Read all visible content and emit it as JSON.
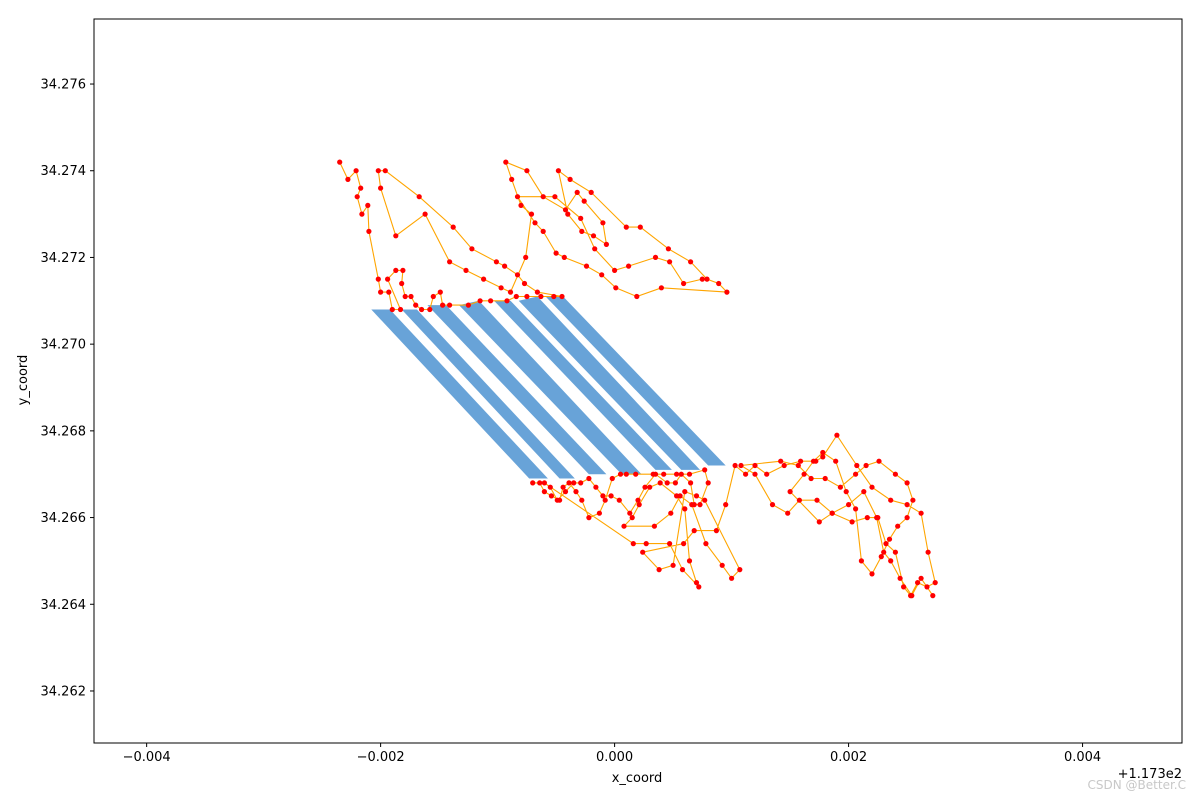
{
  "chart_data": {
    "type": "line",
    "title": "",
    "xlabel": "x_coord",
    "ylabel": "y_coord",
    "x_offset_label": "+1.173e2",
    "x_offset": 117.3,
    "xlim": [
      -0.00445,
      0.00485
    ],
    "ylim": [
      34.2608,
      34.2775
    ],
    "x_tick_values": [
      -0.004,
      -0.002,
      0.0,
      0.002,
      0.004
    ],
    "x_tick_labels": [
      "−0.004",
      "−0.002",
      "0.000",
      "0.002",
      "0.004"
    ],
    "y_tick_values": [
      34.262,
      34.264,
      34.266,
      34.268,
      34.27,
      34.272,
      34.274,
      34.276
    ],
    "y_tick_labels": [
      "34.262",
      "34.264",
      "34.266",
      "34.268",
      "34.270",
      "34.272",
      "34.274",
      "34.276"
    ],
    "grid": false,
    "colors": {
      "polygons": "#5b9bd5",
      "path": "#ffa500",
      "points": "#ff0000",
      "axes": "#000000"
    },
    "polygons": [
      [
        [
          -0.00208,
          34.2708
        ],
        [
          -0.00192,
          34.2708
        ],
        [
          -0.00057,
          34.2669
        ],
        [
          -0.00073,
          34.2669
        ]
      ],
      [
        [
          -0.00182,
          34.2708
        ],
        [
          -0.00169,
          34.2708
        ],
        [
          -0.00034,
          34.2669
        ],
        [
          -0.00047,
          34.2669
        ]
      ],
      [
        [
          -0.0016,
          34.2709
        ],
        [
          -0.00144,
          34.2709
        ],
        [
          -7e-05,
          34.267
        ],
        [
          -0.00022,
          34.267
        ]
      ],
      [
        [
          -0.00133,
          34.2709
        ],
        [
          -0.00116,
          34.271
        ],
        [
          0.00023,
          34.267
        ],
        [
          6e-05,
          34.267
        ]
      ],
      [
        [
          -0.00103,
          34.271
        ],
        [
          -0.00089,
          34.271
        ],
        [
          0.00049,
          34.2671
        ],
        [
          0.00035,
          34.2671
        ]
      ],
      [
        [
          -0.00082,
          34.271
        ],
        [
          -0.00066,
          34.2711
        ],
        [
          0.00073,
          34.2671
        ],
        [
          0.00057,
          34.2671
        ]
      ],
      [
        [
          -0.00059,
          34.2711
        ],
        [
          -0.00044,
          34.2711
        ],
        [
          0.00095,
          34.2672
        ],
        [
          0.0008,
          34.2672
        ]
      ]
    ],
    "series": [
      {
        "points": [
          [
            -0.00235,
            34.2742
          ],
          [
            -0.00228,
            34.2738
          ],
          [
            -0.00221,
            34.274
          ],
          [
            -0.00217,
            34.2736
          ],
          [
            -0.0022,
            34.2734
          ],
          [
            -0.00216,
            34.273
          ],
          [
            -0.00211,
            34.2732
          ],
          [
            -0.0021,
            34.2726
          ],
          [
            -0.00202,
            34.2715
          ],
          [
            -0.002,
            34.2712
          ],
          [
            -0.00193,
            34.2712
          ],
          [
            -0.0019,
            34.2708
          ],
          [
            -0.00183,
            34.2708
          ],
          [
            -0.00194,
            34.2715
          ],
          [
            -0.00187,
            34.2717
          ],
          [
            -0.00181,
            34.2717
          ],
          [
            -0.00182,
            34.2714
          ],
          [
            -0.00179,
            34.2711
          ],
          [
            -0.00174,
            34.2711
          ],
          [
            -0.0017,
            34.2709
          ],
          [
            -0.00165,
            34.2708
          ],
          [
            -0.00158,
            34.2708
          ],
          [
            -0.00155,
            34.2711
          ],
          [
            -0.00149,
            34.2712
          ],
          [
            -0.00147,
            34.2709
          ],
          [
            -0.00141,
            34.2709
          ],
          [
            -0.00125,
            34.2709
          ],
          [
            -0.00115,
            34.271
          ],
          [
            -0.00106,
            34.271
          ],
          [
            -0.00092,
            34.271
          ],
          [
            -0.00084,
            34.2711
          ],
          [
            -0.00075,
            34.2711
          ],
          [
            -0.00063,
            34.2711
          ],
          [
            -0.00052,
            34.2711
          ],
          [
            -0.00045,
            34.2711
          ],
          [
            -0.00066,
            34.2712
          ],
          [
            -0.00077,
            34.2714
          ],
          [
            -0.00083,
            34.2716
          ],
          [
            -0.00094,
            34.2718
          ],
          [
            -0.00101,
            34.2719
          ],
          [
            -0.00122,
            34.2722
          ],
          [
            -0.00138,
            34.2727
          ],
          [
            -0.00167,
            34.2734
          ],
          [
            -0.00196,
            34.274
          ],
          [
            -0.00202,
            34.274
          ],
          [
            -0.002,
            34.2736
          ],
          [
            -0.00187,
            34.2725
          ],
          [
            -0.00162,
            34.273
          ],
          [
            -0.00141,
            34.2719
          ],
          [
            -0.00127,
            34.2717
          ],
          [
            -0.00112,
            34.2715
          ],
          [
            -0.00097,
            34.2713
          ],
          [
            -0.00089,
            34.2712
          ],
          [
            -0.00076,
            34.272
          ],
          [
            -0.00071,
            34.273
          ],
          [
            -0.0008,
            34.2732
          ],
          [
            -0.00088,
            34.2738
          ],
          [
            -0.00093,
            34.2742
          ],
          [
            -0.00075,
            34.274
          ],
          [
            -0.00061,
            34.2734
          ],
          [
            -0.00042,
            34.2731
          ],
          [
            -0.00032,
            34.2735
          ],
          [
            -0.00026,
            34.2733
          ],
          [
            -0.0001,
            34.2728
          ],
          [
            -7e-05,
            34.2723
          ],
          [
            -0.00018,
            34.2725
          ],
          [
            -0.00028,
            34.2726
          ],
          [
            -0.0004,
            34.273
          ],
          [
            -0.00048,
            34.274
          ],
          [
            -0.00038,
            34.2738
          ],
          [
            -0.0002,
            34.2735
          ],
          [
            0.0001,
            34.2727
          ],
          [
            0.00022,
            34.2727
          ],
          [
            0.00046,
            34.2722
          ],
          [
            0.00065,
            34.2719
          ],
          [
            0.00079,
            34.2715
          ],
          [
            0.00089,
            34.2714
          ],
          [
            0.00096,
            34.2712
          ],
          [
            0.0004,
            34.2713
          ],
          [
            0.00019,
            34.2711
          ],
          [
            1e-05,
            34.2713
          ],
          [
            -0.00011,
            34.2716
          ],
          [
            -0.00024,
            34.2718
          ],
          [
            -0.00043,
            34.272
          ],
          [
            -0.0005,
            34.2721
          ],
          [
            -0.00061,
            34.2726
          ],
          [
            -0.00068,
            34.2728
          ],
          [
            -0.00083,
            34.2734
          ],
          [
            -0.00051,
            34.2734
          ],
          [
            -0.00029,
            34.2729
          ],
          [
            -0.00017,
            34.2722
          ],
          [
            0.0,
            34.2717
          ],
          [
            0.00012,
            34.2718
          ],
          [
            0.00035,
            34.272
          ],
          [
            0.00047,
            34.2719
          ],
          [
            0.00059,
            34.2714
          ],
          [
            0.00075,
            34.2715
          ]
        ]
      },
      {
        "points": [
          [
            -0.0007,
            34.2668
          ],
          [
            -0.00064,
            34.2668
          ],
          [
            -0.0006,
            34.2666
          ],
          [
            -0.00054,
            34.2665
          ],
          [
            -0.00047,
            34.2664
          ],
          [
            -0.00044,
            34.2667
          ],
          [
            -0.00039,
            34.2668
          ],
          [
            -0.00033,
            34.2666
          ],
          [
            -0.00028,
            34.2664
          ],
          [
            -0.00022,
            34.266
          ],
          [
            -0.00013,
            34.2661
          ],
          [
            -8e-05,
            34.2664
          ],
          [
            -2e-05,
            34.2669
          ],
          [
            5e-05,
            34.267
          ],
          [
            0.0001,
            34.267
          ],
          [
            0.00018,
            34.267
          ],
          [
            0.00033,
            34.267
          ],
          [
            0.00042,
            34.267
          ],
          [
            0.00053,
            34.267
          ],
          [
            0.00064,
            34.267
          ],
          [
            0.00077,
            34.2671
          ],
          [
            0.0008,
            34.2668
          ],
          [
            0.00073,
            34.2663
          ],
          [
            0.00068,
            34.2663
          ],
          [
            0.00065,
            34.2668
          ],
          [
            0.00057,
            34.267
          ],
          [
            0.00052,
            34.2668
          ],
          [
            0.00045,
            34.2668
          ],
          [
            0.00035,
            34.267
          ],
          [
            0.00026,
            34.2667
          ],
          [
            0.0002,
            34.2664
          ],
          [
            0.00013,
            34.2661
          ],
          [
            4e-05,
            34.2664
          ],
          [
            -3e-05,
            34.2665
          ],
          [
            -0.0001,
            34.2665
          ],
          [
            -0.00016,
            34.2667
          ],
          [
            -0.00022,
            34.2669
          ],
          [
            -0.00029,
            34.2668
          ],
          [
            -0.00035,
            34.2668
          ],
          [
            -0.00042,
            34.2666
          ],
          [
            -0.00049,
            34.2664
          ],
          [
            -0.00055,
            34.2667
          ],
          [
            -0.0006,
            34.2668
          ],
          [
            0.00016,
            34.2654
          ],
          [
            0.00027,
            34.2654
          ],
          [
            0.00047,
            34.2654
          ],
          [
            0.00058,
            34.2648
          ],
          [
            0.00072,
            34.2644
          ],
          [
            0.0007,
            34.2645
          ],
          [
            0.00064,
            34.265
          ],
          [
            0.0006,
            34.2662
          ],
          [
            0.00053,
            34.2665
          ],
          [
            0.00039,
            34.2668
          ],
          [
            0.0003,
            34.2667
          ],
          [
            0.00021,
            34.2663
          ],
          [
            0.00015,
            34.266
          ],
          [
            8e-05,
            34.2658
          ],
          [
            0.00034,
            34.2658
          ],
          [
            0.00048,
            34.2661
          ],
          [
            0.00056,
            34.2665
          ],
          [
            0.00066,
            34.2663
          ],
          [
            0.00078,
            34.2654
          ],
          [
            0.00092,
            34.2649
          ],
          [
            0.001,
            34.2646
          ],
          [
            0.00107,
            34.2648
          ],
          [
            0.00077,
            34.2664
          ],
          [
            0.0007,
            34.2665
          ],
          [
            0.0006,
            34.2666
          ],
          [
            0.0005,
            34.2649
          ],
          [
            0.00038,
            34.2648
          ],
          [
            0.00024,
            34.2652
          ],
          [
            0.00059,
            34.2654
          ],
          [
            0.00068,
            34.2657
          ],
          [
            0.00087,
            34.2657
          ],
          [
            0.00095,
            34.2663
          ],
          [
            0.00103,
            34.2672
          ],
          [
            0.00112,
            34.267
          ],
          [
            0.0012,
            34.2672
          ],
          [
            0.0013,
            34.267
          ],
          [
            0.00145,
            34.2672
          ],
          [
            0.00159,
            34.2673
          ],
          [
            0.00172,
            34.2673
          ],
          [
            0.00178,
            34.2674
          ],
          [
            0.0019,
            34.2679
          ],
          [
            0.00207,
            34.2672
          ],
          [
            0.0022,
            34.2667
          ],
          [
            0.00236,
            34.2664
          ],
          [
            0.0025,
            34.2663
          ],
          [
            0.00262,
            34.2661
          ],
          [
            0.00268,
            34.2652
          ],
          [
            0.00274,
            34.2645
          ],
          [
            0.00267,
            34.2644
          ],
          [
            0.00259,
            34.2645
          ],
          [
            0.00253,
            34.2642
          ],
          [
            0.00247,
            34.2644
          ],
          [
            0.0024,
            34.2652
          ],
          [
            0.00232,
            34.2654
          ],
          [
            0.00225,
            34.266
          ],
          [
            0.00216,
            34.266
          ],
          [
            0.00203,
            34.2659
          ],
          [
            0.00186,
            34.2661
          ],
          [
            0.00173,
            34.2664
          ],
          [
            0.00158,
            34.2664
          ],
          [
            0.00148,
            34.2661
          ],
          [
            0.00135,
            34.2663
          ],
          [
            0.0012,
            34.267
          ],
          [
            0.00108,
            34.2672
          ],
          [
            0.00142,
            34.2673
          ],
          [
            0.00157,
            34.2672
          ],
          [
            0.00168,
            34.2669
          ],
          [
            0.0018,
            34.2669
          ],
          [
            0.00193,
            34.2667
          ],
          [
            0.00206,
            34.267
          ],
          [
            0.00215,
            34.2672
          ],
          [
            0.00226,
            34.2673
          ],
          [
            0.0024,
            34.267
          ],
          [
            0.0025,
            34.2668
          ],
          [
            0.00255,
            34.2664
          ],
          [
            0.0025,
            34.266
          ],
          [
            0.00242,
            34.2658
          ],
          [
            0.00235,
            34.2655
          ],
          [
            0.00228,
            34.2651
          ],
          [
            0.0022,
            34.2647
          ],
          [
            0.00211,
            34.265
          ],
          [
            0.00206,
            34.2662
          ],
          [
            0.00198,
            34.2666
          ],
          [
            0.00189,
            34.2673
          ],
          [
            0.00178,
            34.2675
          ],
          [
            0.0017,
            34.2673
          ],
          [
            0.00162,
            34.267
          ],
          [
            0.0015,
            34.2666
          ],
          [
            0.00175,
            34.2659
          ],
          [
            0.00186,
            34.2661
          ],
          [
            0.002,
            34.2663
          ],
          [
            0.00213,
            34.2666
          ],
          [
            0.00224,
            34.266
          ],
          [
            0.0023,
            34.2652
          ],
          [
            0.00236,
            34.265
          ],
          [
            0.00244,
            34.2646
          ],
          [
            0.00254,
            34.2642
          ],
          [
            0.00262,
            34.2646
          ],
          [
            0.00272,
            34.2642
          ]
        ]
      }
    ]
  },
  "watermark": "CSDN @Better.C"
}
